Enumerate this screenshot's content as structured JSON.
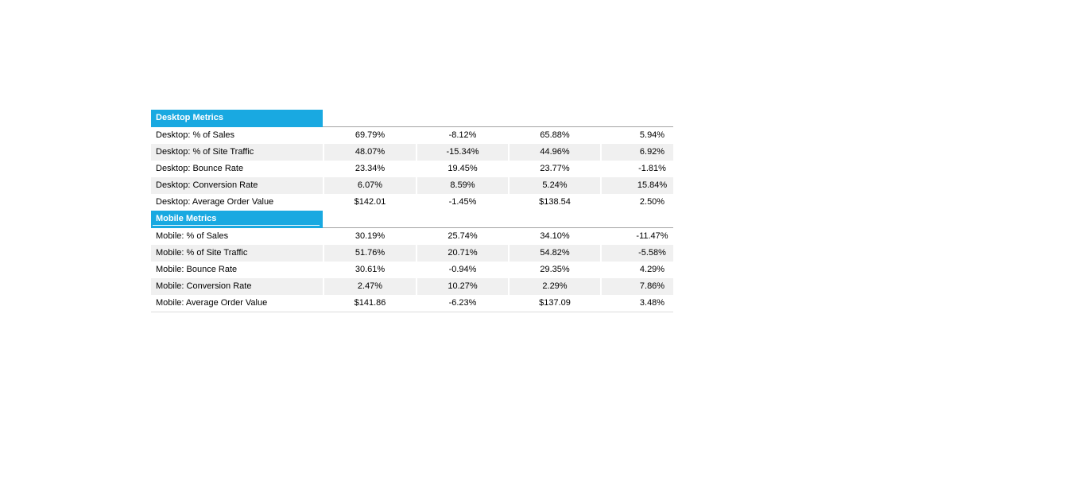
{
  "chart_data": {
    "type": "table",
    "title": "",
    "sections": [
      {
        "title": "Desktop Metrics",
        "rows": [
          {
            "label": "Desktop: % of Sales",
            "values": [
              "69.79%",
              "-8.12%",
              "65.88%",
              "5.94%"
            ]
          },
          {
            "label": "Desktop: % of Site Traffic",
            "values": [
              "48.07%",
              "-15.34%",
              "44.96%",
              "6.92%"
            ]
          },
          {
            "label": "Desktop: Bounce Rate",
            "values": [
              "23.34%",
              "19.45%",
              "23.77%",
              "-1.81%"
            ]
          },
          {
            "label": "Desktop: Conversion Rate",
            "values": [
              "6.07%",
              "8.59%",
              "5.24%",
              "15.84%"
            ]
          },
          {
            "label": "Desktop: Average Order Value",
            "values": [
              "$142.01",
              "-1.45%",
              "$138.54",
              "2.50%"
            ]
          }
        ]
      },
      {
        "title": "Mobile Metrics",
        "rows": [
          {
            "label": "Mobile: % of Sales",
            "values": [
              "30.19%",
              "25.74%",
              "34.10%",
              "-11.47%"
            ]
          },
          {
            "label": "Mobile: % of Site Traffic",
            "values": [
              "51.76%",
              "20.71%",
              "54.82%",
              "-5.58%"
            ]
          },
          {
            "label": "Mobile: Bounce Rate",
            "values": [
              "30.61%",
              "-0.94%",
              "29.35%",
              "4.29%"
            ]
          },
          {
            "label": "Mobile: Conversion Rate",
            "values": [
              "2.47%",
              "10.27%",
              "2.29%",
              "7.86%"
            ]
          },
          {
            "label": "Mobile: Average Order Value",
            "values": [
              "$141.86",
              "-6.23%",
              "$137.09",
              "3.48%"
            ]
          }
        ]
      }
    ],
    "layout": {
      "column_headers_visible": false,
      "striped_rows": true,
      "legend_position": "none"
    },
    "colors": {
      "header_fill": "#19a9e1",
      "header_text": "#ffffff",
      "stripe_fill": "#f0f0f0",
      "row_fill": "#ffffff",
      "text": "#000000",
      "header_rule": "#a3a3a3",
      "bottom_rule": "#dcdcdc"
    }
  }
}
